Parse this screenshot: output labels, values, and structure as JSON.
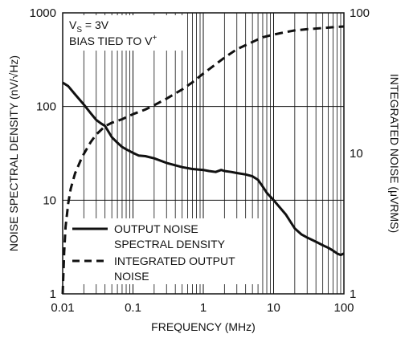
{
  "chart_data": {
    "type": "line",
    "xlabel": "FREQUENCY (MHz)",
    "ylabel_left": "NOISE SPECTRAL DENSITY (nV/√Hz)",
    "ylabel_right": "INTEGRATED NOISE (μVRMS)",
    "x_scale": "log",
    "y_left_scale": "log",
    "y_right_scale": "log",
    "xlim": [
      0.01,
      100
    ],
    "ylim_left": [
      1,
      1000
    ],
    "ylim_right": [
      1,
      100
    ],
    "x_ticks": [
      "0.01",
      "0.1",
      "1",
      "10",
      "100"
    ],
    "y_left_ticks": [
      "1",
      "10",
      "100",
      "1000"
    ],
    "y_right_ticks": [
      "1",
      "10",
      "100"
    ],
    "grid": true,
    "legend_position": "bottom-left",
    "annotations": {
      "supply_prefix": "V",
      "supply_sub": "S",
      "supply_value": " = 3V",
      "bias_text": "BIAS TIED TO V",
      "bias_sup": "+"
    },
    "series": [
      {
        "name": "OUTPUT NOISE SPECTRAL DENSITY",
        "legend_lines": [
          "OUTPUT NOISE",
          "SPECTRAL DENSITY"
        ],
        "axis": "left",
        "style": "solid",
        "x": [
          0.01,
          0.012,
          0.015,
          0.02,
          0.025,
          0.03,
          0.035,
          0.04,
          0.05,
          0.06,
          0.07,
          0.08,
          0.1,
          0.12,
          0.15,
          0.2,
          0.3,
          0.5,
          0.7,
          1,
          1.2,
          1.5,
          1.8,
          2,
          2.5,
          3,
          4,
          5,
          6,
          7,
          8,
          10,
          15,
          20,
          25,
          30,
          40,
          50,
          60,
          70,
          80,
          90,
          100
        ],
        "y": [
          180,
          165,
          135,
          105,
          85,
          72,
          66,
          62,
          47,
          41,
          37,
          35,
          32,
          30,
          29.5,
          28,
          25,
          22.5,
          21.5,
          21,
          20.5,
          20,
          21,
          20.5,
          20,
          19.5,
          18.8,
          18,
          16.5,
          14,
          12,
          10,
          7,
          5,
          4.3,
          4,
          3.6,
          3.3,
          3.1,
          2.9,
          2.7,
          2.6,
          2.7
        ]
      },
      {
        "name": "INTEGRATED OUTPUT NOISE",
        "legend_lines": [
          "INTEGRATED OUTPUT",
          "NOISE"
        ],
        "axis": "right",
        "style": "dashed",
        "x": [
          0.01,
          0.0105,
          0.011,
          0.012,
          0.013,
          0.015,
          0.018,
          0.02,
          0.025,
          0.03,
          0.04,
          0.05,
          0.07,
          0.1,
          0.15,
          0.2,
          0.3,
          0.5,
          0.7,
          1,
          1.5,
          2,
          3,
          5,
          7,
          10,
          15,
          20,
          30,
          50,
          70,
          100
        ],
        "y": [
          1,
          2,
          3,
          4.4,
          5.6,
          7.2,
          8.9,
          9.9,
          12,
          13.6,
          15.6,
          16.5,
          17.5,
          19,
          20.5,
          22,
          24.5,
          28.5,
          32,
          37,
          43,
          48,
          55,
          62,
          67,
          70,
          73,
          75,
          76.5,
          78,
          79,
          80
        ]
      }
    ]
  }
}
